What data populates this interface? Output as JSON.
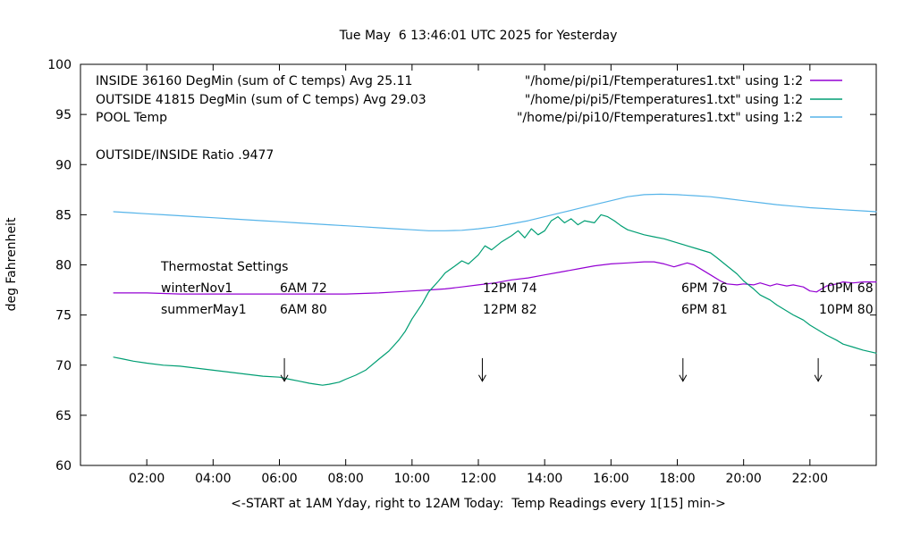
{
  "chart_data": {
    "type": "line",
    "title": "Tue May  6 13:46:01 UTC 2025 for Yesterday",
    "xlabel": "<-START at 1AM Yday, right to 12AM Today:  Temp Readings every 1[15] min->",
    "ylabel": "deg Fahrenheit",
    "x_unit": "hour of day (1 = 1AM yesterday, 24 = 12AM today)",
    "xlim": [
      0,
      24
    ],
    "ylim": [
      60,
      100
    ],
    "grid": false,
    "legend_position": "inside top: description labels left, file keys with line samples right",
    "x_ticks": [
      {
        "v": 2,
        "label": "02:00"
      },
      {
        "v": 4,
        "label": "04:00"
      },
      {
        "v": 6,
        "label": "06:00"
      },
      {
        "v": 8,
        "label": "08:00"
      },
      {
        "v": 10,
        "label": "10:00"
      },
      {
        "v": 12,
        "label": "12:00"
      },
      {
        "v": 14,
        "label": "14:00"
      },
      {
        "v": 16,
        "label": "16:00"
      },
      {
        "v": 18,
        "label": "18:00"
      },
      {
        "v": 20,
        "label": "20:00"
      },
      {
        "v": 22,
        "label": "22:00"
      }
    ],
    "y_ticks": [
      {
        "v": 60,
        "label": "60"
      },
      {
        "v": 65,
        "label": "65"
      },
      {
        "v": 70,
        "label": "70"
      },
      {
        "v": 75,
        "label": "75"
      },
      {
        "v": 80,
        "label": "80"
      },
      {
        "v": 85,
        "label": "85"
      },
      {
        "v": 90,
        "label": "90"
      },
      {
        "v": 95,
        "label": "95"
      },
      {
        "v": 100,
        "label": "100"
      }
    ],
    "series": [
      {
        "name": "INSIDE",
        "color": "#9400d3",
        "points": [
          [
            1,
            77.2
          ],
          [
            1.5,
            77.2
          ],
          [
            2,
            77.2
          ],
          [
            2.5,
            77.15
          ],
          [
            3,
            77.1
          ],
          [
            3.5,
            77.1
          ],
          [
            4,
            77.1
          ],
          [
            4.5,
            77.1
          ],
          [
            5,
            77.1
          ],
          [
            5.5,
            77.1
          ],
          [
            6,
            77.1
          ],
          [
            6.5,
            77.1
          ],
          [
            7,
            77.1
          ],
          [
            7.5,
            77.1
          ],
          [
            8,
            77.1
          ],
          [
            8.5,
            77.15
          ],
          [
            9,
            77.2
          ],
          [
            9.5,
            77.3
          ],
          [
            10,
            77.4
          ],
          [
            10.5,
            77.5
          ],
          [
            11,
            77.6
          ],
          [
            11.5,
            77.8
          ],
          [
            12,
            78.0
          ],
          [
            12.5,
            78.2
          ],
          [
            13,
            78.5
          ],
          [
            13.5,
            78.7
          ],
          [
            14,
            79.0
          ],
          [
            14.5,
            79.3
          ],
          [
            15,
            79.6
          ],
          [
            15.5,
            79.9
          ],
          [
            16,
            80.1
          ],
          [
            16.5,
            80.2
          ],
          [
            17,
            80.3
          ],
          [
            17.3,
            80.3
          ],
          [
            17.6,
            80.1
          ],
          [
            17.9,
            79.8
          ],
          [
            18.1,
            80.0
          ],
          [
            18.3,
            80.2
          ],
          [
            18.5,
            80.0
          ],
          [
            18.8,
            79.4
          ],
          [
            19,
            79.0
          ],
          [
            19.3,
            78.4
          ],
          [
            19.5,
            78.1
          ],
          [
            19.8,
            78.0
          ],
          [
            20,
            78.1
          ],
          [
            20.3,
            78.0
          ],
          [
            20.5,
            78.2
          ],
          [
            20.8,
            77.9
          ],
          [
            21,
            78.1
          ],
          [
            21.3,
            77.9
          ],
          [
            21.5,
            78.0
          ],
          [
            21.8,
            77.8
          ],
          [
            22,
            77.4
          ],
          [
            22.2,
            77.3
          ],
          [
            22.5,
            77.9
          ],
          [
            22.8,
            78.1
          ],
          [
            23,
            78.3
          ],
          [
            23.3,
            78.2
          ],
          [
            23.6,
            78.3
          ],
          [
            24,
            78.3
          ]
        ]
      },
      {
        "name": "OUTSIDE",
        "color": "#009e73",
        "points": [
          [
            1,
            70.8
          ],
          [
            1.3,
            70.6
          ],
          [
            1.6,
            70.4
          ],
          [
            2,
            70.2
          ],
          [
            2.5,
            70.0
          ],
          [
            3,
            69.9
          ],
          [
            3.5,
            69.7
          ],
          [
            4,
            69.5
          ],
          [
            4.5,
            69.3
          ],
          [
            5,
            69.1
          ],
          [
            5.5,
            68.9
          ],
          [
            6,
            68.8
          ],
          [
            6.3,
            68.6
          ],
          [
            6.6,
            68.4
          ],
          [
            6.9,
            68.2
          ],
          [
            7.1,
            68.1
          ],
          [
            7.3,
            68.0
          ],
          [
            7.5,
            68.1
          ],
          [
            7.8,
            68.3
          ],
          [
            8,
            68.6
          ],
          [
            8.3,
            69.0
          ],
          [
            8.6,
            69.5
          ],
          [
            9,
            70.6
          ],
          [
            9.3,
            71.4
          ],
          [
            9.6,
            72.5
          ],
          [
            9.8,
            73.4
          ],
          [
            10,
            74.6
          ],
          [
            10.3,
            76.1
          ],
          [
            10.5,
            77.3
          ],
          [
            10.8,
            78.4
          ],
          [
            11,
            79.2
          ],
          [
            11.3,
            79.9
          ],
          [
            11.5,
            80.4
          ],
          [
            11.7,
            80.1
          ],
          [
            12,
            81.0
          ],
          [
            12.2,
            81.9
          ],
          [
            12.4,
            81.5
          ],
          [
            12.7,
            82.3
          ],
          [
            13,
            82.9
          ],
          [
            13.2,
            83.4
          ],
          [
            13.4,
            82.7
          ],
          [
            13.6,
            83.6
          ],
          [
            13.8,
            83.0
          ],
          [
            14,
            83.4
          ],
          [
            14.2,
            84.4
          ],
          [
            14.4,
            84.8
          ],
          [
            14.6,
            84.2
          ],
          [
            14.8,
            84.6
          ],
          [
            15,
            84.0
          ],
          [
            15.2,
            84.4
          ],
          [
            15.5,
            84.2
          ],
          [
            15.7,
            85.0
          ],
          [
            15.9,
            84.8
          ],
          [
            16.1,
            84.4
          ],
          [
            16.3,
            83.9
          ],
          [
            16.5,
            83.5
          ],
          [
            16.8,
            83.2
          ],
          [
            17,
            83.0
          ],
          [
            17.3,
            82.8
          ],
          [
            17.6,
            82.6
          ],
          [
            18,
            82.2
          ],
          [
            18.3,
            81.9
          ],
          [
            18.6,
            81.6
          ],
          [
            19,
            81.2
          ],
          [
            19.2,
            80.7
          ],
          [
            19.5,
            79.9
          ],
          [
            19.8,
            79.1
          ],
          [
            20,
            78.4
          ],
          [
            20.3,
            77.6
          ],
          [
            20.5,
            77.0
          ],
          [
            20.8,
            76.5
          ],
          [
            21,
            76.0
          ],
          [
            21.3,
            75.4
          ],
          [
            21.5,
            75.0
          ],
          [
            21.8,
            74.5
          ],
          [
            22,
            74.0
          ],
          [
            22.3,
            73.4
          ],
          [
            22.5,
            73.0
          ],
          [
            22.8,
            72.5
          ],
          [
            23,
            72.1
          ],
          [
            23.3,
            71.8
          ],
          [
            23.6,
            71.5
          ],
          [
            24,
            71.2
          ]
        ]
      },
      {
        "name": "POOL",
        "color": "#56b4e9",
        "points": [
          [
            1,
            85.3
          ],
          [
            1.5,
            85.2
          ],
          [
            2,
            85.1
          ],
          [
            2.5,
            85.0
          ],
          [
            3,
            84.9
          ],
          [
            3.5,
            84.8
          ],
          [
            4,
            84.7
          ],
          [
            4.5,
            84.6
          ],
          [
            5,
            84.5
          ],
          [
            5.5,
            84.4
          ],
          [
            6,
            84.3
          ],
          [
            6.5,
            84.2
          ],
          [
            7,
            84.1
          ],
          [
            7.5,
            84.0
          ],
          [
            8,
            83.9
          ],
          [
            8.5,
            83.8
          ],
          [
            9,
            83.7
          ],
          [
            9.5,
            83.6
          ],
          [
            10,
            83.5
          ],
          [
            10.5,
            83.4
          ],
          [
            11,
            83.4
          ],
          [
            11.5,
            83.45
          ],
          [
            12,
            83.6
          ],
          [
            12.5,
            83.8
          ],
          [
            13,
            84.1
          ],
          [
            13.5,
            84.4
          ],
          [
            14,
            84.8
          ],
          [
            14.5,
            85.2
          ],
          [
            15,
            85.6
          ],
          [
            15.5,
            86.0
          ],
          [
            16,
            86.4
          ],
          [
            16.5,
            86.8
          ],
          [
            17,
            87.0
          ],
          [
            17.5,
            87.05
          ],
          [
            18,
            87.0
          ],
          [
            18.5,
            86.9
          ],
          [
            19,
            86.8
          ],
          [
            19.5,
            86.6
          ],
          [
            20,
            86.4
          ],
          [
            20.5,
            86.2
          ],
          [
            21,
            86.0
          ],
          [
            21.5,
            85.85
          ],
          [
            22,
            85.7
          ],
          [
            22.5,
            85.6
          ],
          [
            23,
            85.5
          ],
          [
            23.5,
            85.4
          ],
          [
            24,
            85.3
          ]
        ]
      }
    ]
  },
  "legend": {
    "entries": [
      {
        "label": "INSIDE 36160 DegMin (sum of C temps) Avg 25.11",
        "file": "\"/home/pi/pi1/Ftemperatures1.txt\" using 1:2"
      },
      {
        "label": "OUTSIDE 41815 DegMin (sum of C temps) Avg 29.03",
        "file": "\"/home/pi/pi5/Ftemperatures1.txt\" using 1:2"
      },
      {
        "label": "POOL Temp",
        "file": "\"/home/pi/pi10/Ftemperatures1.txt\" using 1:2"
      }
    ]
  },
  "annotations": {
    "ratio_text": "OUTSIDE/INSIDE Ratio .9477",
    "thermostat": {
      "header": "Thermostat Settings",
      "rows": [
        {
          "cells": [
            "winterNov1",
            "6AM 72",
            "12PM 74",
            "6PM 76",
            "10PM 68"
          ]
        },
        {
          "cells": [
            "summerMay1",
            "6AM 80",
            "12PM 82",
            "6PM 81",
            "10PM 80"
          ]
        }
      ]
    },
    "arrows": {
      "x_hours": [
        6.15,
        12.12,
        18.17,
        22.25
      ],
      "y_from": 70.7,
      "y_to": 68.4
    }
  }
}
